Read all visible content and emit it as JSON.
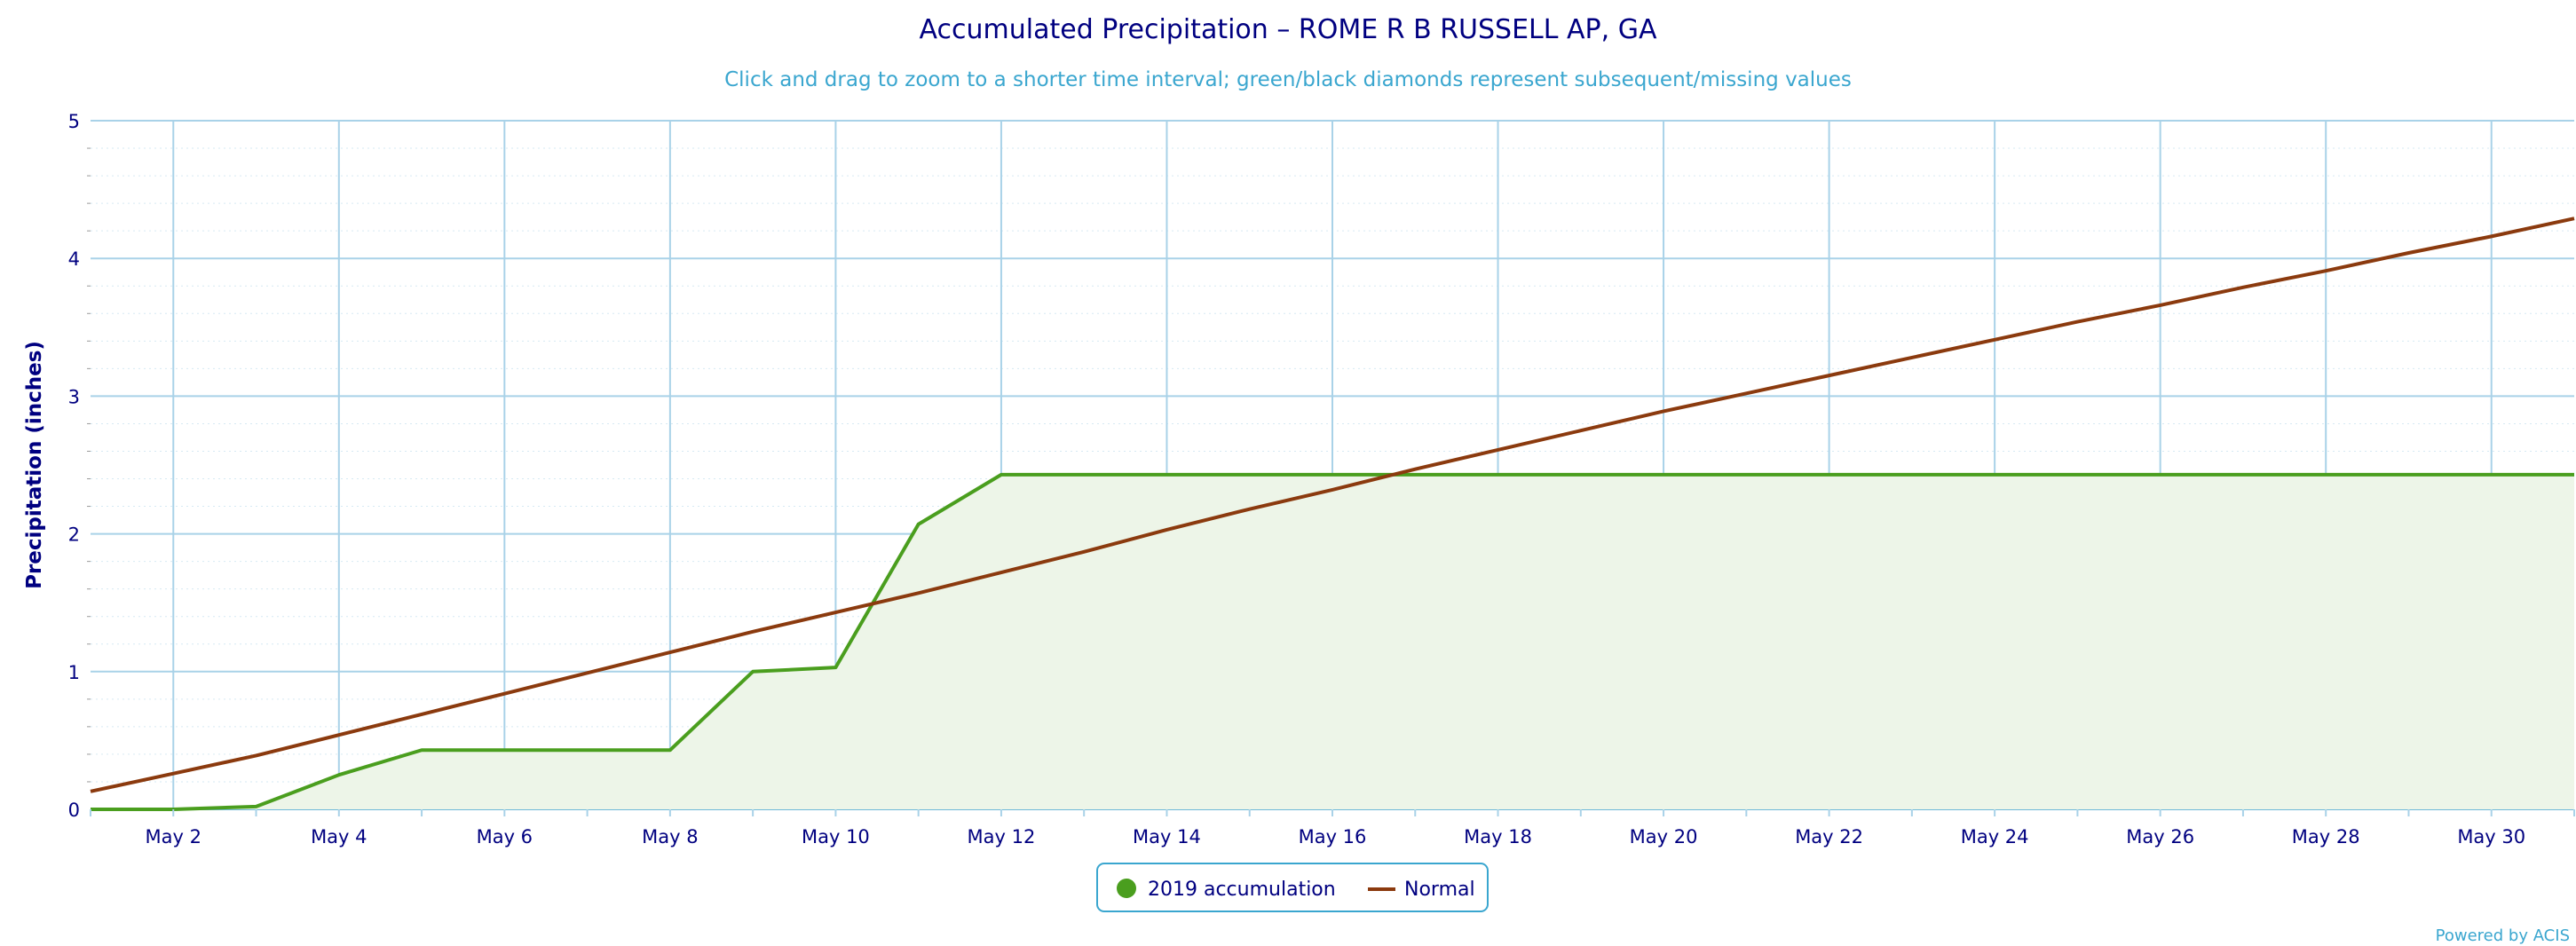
{
  "colors": {
    "accumulation": "#4a9e1e",
    "accumulation_fill": "#edf5e8",
    "normal": "#8b3a0e",
    "grid": "#a9d2e8",
    "minor_grid": "#d6e9f3",
    "text": "#000080",
    "subtitle": "#3aa6cf"
  },
  "chart_data": {
    "type": "area",
    "title": "Accumulated Precipitation – ROME R B RUSSELL AP, GA",
    "subtitle": "Click and drag to zoom to a shorter time interval; green/black diamonds represent subsequent/missing values",
    "ylabel": "Precipitation (inches)",
    "xlabel": "",
    "xlim": [
      1,
      31
    ],
    "ylim": [
      0,
      5
    ],
    "yticks": [
      0,
      1,
      2,
      3,
      4,
      5
    ],
    "xticks": [
      2,
      4,
      6,
      8,
      10,
      12,
      14,
      16,
      18,
      20,
      22,
      24,
      26,
      28,
      30
    ],
    "xtick_labels": [
      "May 2",
      "May 4",
      "May 6",
      "May 8",
      "May 10",
      "May 12",
      "May 14",
      "May 16",
      "May 18",
      "May 20",
      "May 22",
      "May 24",
      "May 26",
      "May 28",
      "May 30"
    ],
    "grid": true,
    "legend_position": "bottom-center",
    "series": [
      {
        "name": "2019 accumulation",
        "type": "area",
        "x": [
          1,
          2,
          3,
          4,
          5,
          6,
          7,
          8,
          9,
          10,
          11,
          12,
          13,
          14,
          15,
          16,
          17,
          18,
          19,
          20,
          21,
          22,
          23,
          24,
          25,
          26,
          27,
          28,
          29,
          30,
          31
        ],
        "values": [
          0.0,
          0.0,
          0.02,
          0.25,
          0.43,
          0.43,
          0.43,
          0.43,
          1.0,
          1.03,
          2.07,
          2.43,
          2.43,
          2.43,
          2.43,
          2.43,
          2.43,
          2.43,
          2.43,
          2.43,
          2.43,
          2.43,
          2.43,
          2.43,
          2.43,
          2.43,
          2.43,
          2.43,
          2.43,
          2.43,
          2.43
        ]
      },
      {
        "name": "Normal",
        "type": "line",
        "x": [
          1,
          2,
          3,
          4,
          5,
          6,
          7,
          8,
          9,
          10,
          11,
          12,
          13,
          14,
          15,
          16,
          17,
          18,
          19,
          20,
          21,
          22,
          23,
          24,
          25,
          26,
          27,
          28,
          29,
          30,
          31
        ],
        "values": [
          0.13,
          0.26,
          0.39,
          0.54,
          0.69,
          0.84,
          0.99,
          1.14,
          1.29,
          1.43,
          1.57,
          1.72,
          1.87,
          2.03,
          2.18,
          2.32,
          2.47,
          2.61,
          2.75,
          2.89,
          3.02,
          3.15,
          3.28,
          3.41,
          3.54,
          3.66,
          3.79,
          3.91,
          4.04,
          4.16,
          4.29
        ]
      }
    ]
  },
  "legend": {
    "accumulation_label": "2019 accumulation",
    "normal_label": "Normal"
  },
  "credit": "Powered by ACIS"
}
